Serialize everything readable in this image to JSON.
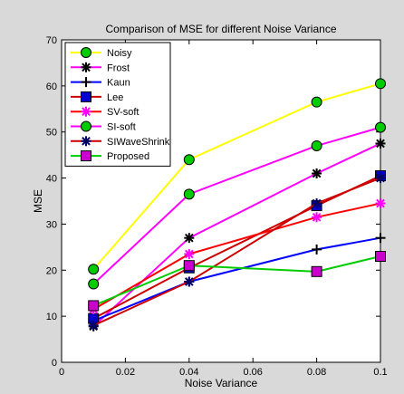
{
  "chart_data": {
    "type": "line",
    "title": "Comparison of MSE for different Noise Variance",
    "xlabel": "Noise Variance",
    "ylabel": "MSE",
    "xlim": [
      0,
      0.1
    ],
    "ylim": [
      0,
      70
    ],
    "xticks": [
      "0",
      "0.02",
      "0.04",
      "0.06",
      "0.08",
      "0.1"
    ],
    "yticks": [
      "0",
      "10",
      "20",
      "30",
      "40",
      "50",
      "60",
      "70"
    ],
    "grid": false,
    "legend_position": "top-left",
    "x": [
      0.01,
      0.04,
      0.08,
      0.1
    ],
    "series": [
      {
        "name": "Noisy",
        "values": [
          20.2,
          44.0,
          56.5,
          60.5
        ],
        "color": "#ffff00",
        "marker": "circle",
        "marker_fill": "#00cc00"
      },
      {
        "name": "Frost",
        "values": [
          7.8,
          27.0,
          41.0,
          47.5
        ],
        "color": "#ff00ff",
        "marker": "asterisk",
        "marker_fill": "#000000"
      },
      {
        "name": "Kaun",
        "values": [
          9.0,
          17.5,
          24.5,
          27.0
        ],
        "color": "#0000ff",
        "marker": "plus",
        "marker_fill": "#000000"
      },
      {
        "name": "Lee",
        "values": [
          9.5,
          20.5,
          34.0,
          40.5
        ],
        "color": "#cc0000",
        "marker": "square",
        "marker_fill": "#0000cc"
      },
      {
        "name": "SV-soft",
        "values": [
          11.5,
          23.5,
          31.5,
          34.5
        ],
        "color": "#ff0000",
        "marker": "asterisk",
        "marker_fill": "#ff00ff"
      },
      {
        "name": "SI-soft",
        "values": [
          17.0,
          36.5,
          47.0,
          51.0
        ],
        "color": "#ff00ff",
        "marker": "circle",
        "marker_fill": "#00cc00"
      },
      {
        "name": "SIWaveShrink",
        "values": [
          8.0,
          17.5,
          34.5,
          40.0
        ],
        "color": "#cc0000",
        "marker": "asterisk",
        "marker_fill": "#000066"
      },
      {
        "name": "Proposed",
        "values": [
          12.3,
          21.0,
          19.7,
          23.0
        ],
        "color": "#00cc00",
        "marker": "square",
        "marker_fill": "#cc00cc"
      }
    ]
  }
}
